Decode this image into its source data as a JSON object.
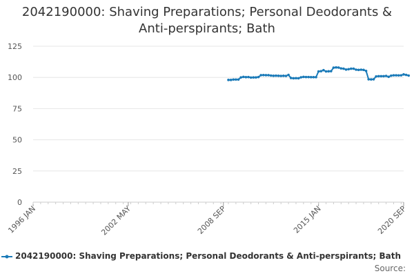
{
  "chart_data": {
    "type": "line",
    "title_lines": [
      "2042190000: Shaving Preparations; Personal Deodorants &",
      "Anti-perspirants; Bath"
    ],
    "y_ticks": [
      0,
      25,
      50,
      75,
      100,
      125
    ],
    "ylim": [
      0,
      125
    ],
    "x_tick_labels": [
      "1996 JAN",
      "2002 MAY",
      "2008 SEP",
      "2015 JAN",
      "2020 SEP"
    ],
    "x_tick_dates": [
      "1996-01",
      "2002-05",
      "2008-09",
      "2015-01",
      "2020-09"
    ],
    "xlim": [
      "1996-01",
      "2020-09"
    ],
    "grid": true,
    "legend_position": "bottom",
    "series": [
      {
        "name": "2042190000: Shaving Preparations; Personal Deodorants & Anti-perspirants; Bath",
        "color": "#1a7ab8",
        "points": [
          [
            "2009-01",
            98.0
          ],
          [
            "2009-03",
            98.0
          ],
          [
            "2009-05",
            98.3
          ],
          [
            "2009-07",
            98.3
          ],
          [
            "2009-09",
            98.3
          ],
          [
            "2009-11",
            100.0
          ],
          [
            "2010-01",
            100.4
          ],
          [
            "2010-03",
            100.2
          ],
          [
            "2010-05",
            100.3
          ],
          [
            "2010-07",
            99.9
          ],
          [
            "2010-09",
            100.0
          ],
          [
            "2010-11",
            100.0
          ],
          [
            "2011-01",
            100.3
          ],
          [
            "2011-03",
            101.8
          ],
          [
            "2011-05",
            101.9
          ],
          [
            "2011-07",
            101.8
          ],
          [
            "2011-09",
            101.8
          ],
          [
            "2011-11",
            101.5
          ],
          [
            "2012-01",
            101.3
          ],
          [
            "2012-03",
            101.4
          ],
          [
            "2012-05",
            101.3
          ],
          [
            "2012-07",
            101.2
          ],
          [
            "2012-09",
            101.3
          ],
          [
            "2012-11",
            101.2
          ],
          [
            "2013-01",
            102.0
          ],
          [
            "2013-03",
            99.5
          ],
          [
            "2013-05",
            99.3
          ],
          [
            "2013-07",
            99.4
          ],
          [
            "2013-09",
            99.3
          ],
          [
            "2013-11",
            100.1
          ],
          [
            "2014-01",
            100.4
          ],
          [
            "2014-03",
            100.3
          ],
          [
            "2014-05",
            100.3
          ],
          [
            "2014-07",
            100.2
          ],
          [
            "2014-09",
            100.2
          ],
          [
            "2014-11",
            100.2
          ],
          [
            "2015-01",
            104.8
          ],
          [
            "2015-03",
            105.0
          ],
          [
            "2015-05",
            105.8
          ],
          [
            "2015-07",
            104.8
          ],
          [
            "2015-09",
            104.9
          ],
          [
            "2015-11",
            105.0
          ],
          [
            "2016-01",
            107.8
          ],
          [
            "2016-03",
            108.0
          ],
          [
            "2016-05",
            107.9
          ],
          [
            "2016-07",
            107.2
          ],
          [
            "2016-09",
            107.0
          ],
          [
            "2016-11",
            106.3
          ],
          [
            "2017-01",
            106.6
          ],
          [
            "2017-03",
            107.0
          ],
          [
            "2017-05",
            107.0
          ],
          [
            "2017-07",
            106.2
          ],
          [
            "2017-09",
            106.0
          ],
          [
            "2017-11",
            106.2
          ],
          [
            "2018-01",
            106.0
          ],
          [
            "2018-03",
            105.2
          ],
          [
            "2018-05",
            98.5
          ],
          [
            "2018-07",
            98.4
          ],
          [
            "2018-09",
            98.5
          ],
          [
            "2018-11",
            100.8
          ],
          [
            "2019-01",
            101.0
          ],
          [
            "2019-03",
            101.0
          ],
          [
            "2019-05",
            101.0
          ],
          [
            "2019-07",
            101.2
          ],
          [
            "2019-09",
            100.5
          ],
          [
            "2019-11",
            101.4
          ],
          [
            "2020-01",
            101.7
          ],
          [
            "2020-03",
            101.7
          ],
          [
            "2020-05",
            101.6
          ],
          [
            "2020-07",
            101.7
          ],
          [
            "2020-09",
            102.4
          ],
          [
            "2020-11",
            102.0
          ],
          [
            "2021-01",
            101.5
          ]
        ]
      }
    ],
    "source_label": "Source:"
  }
}
